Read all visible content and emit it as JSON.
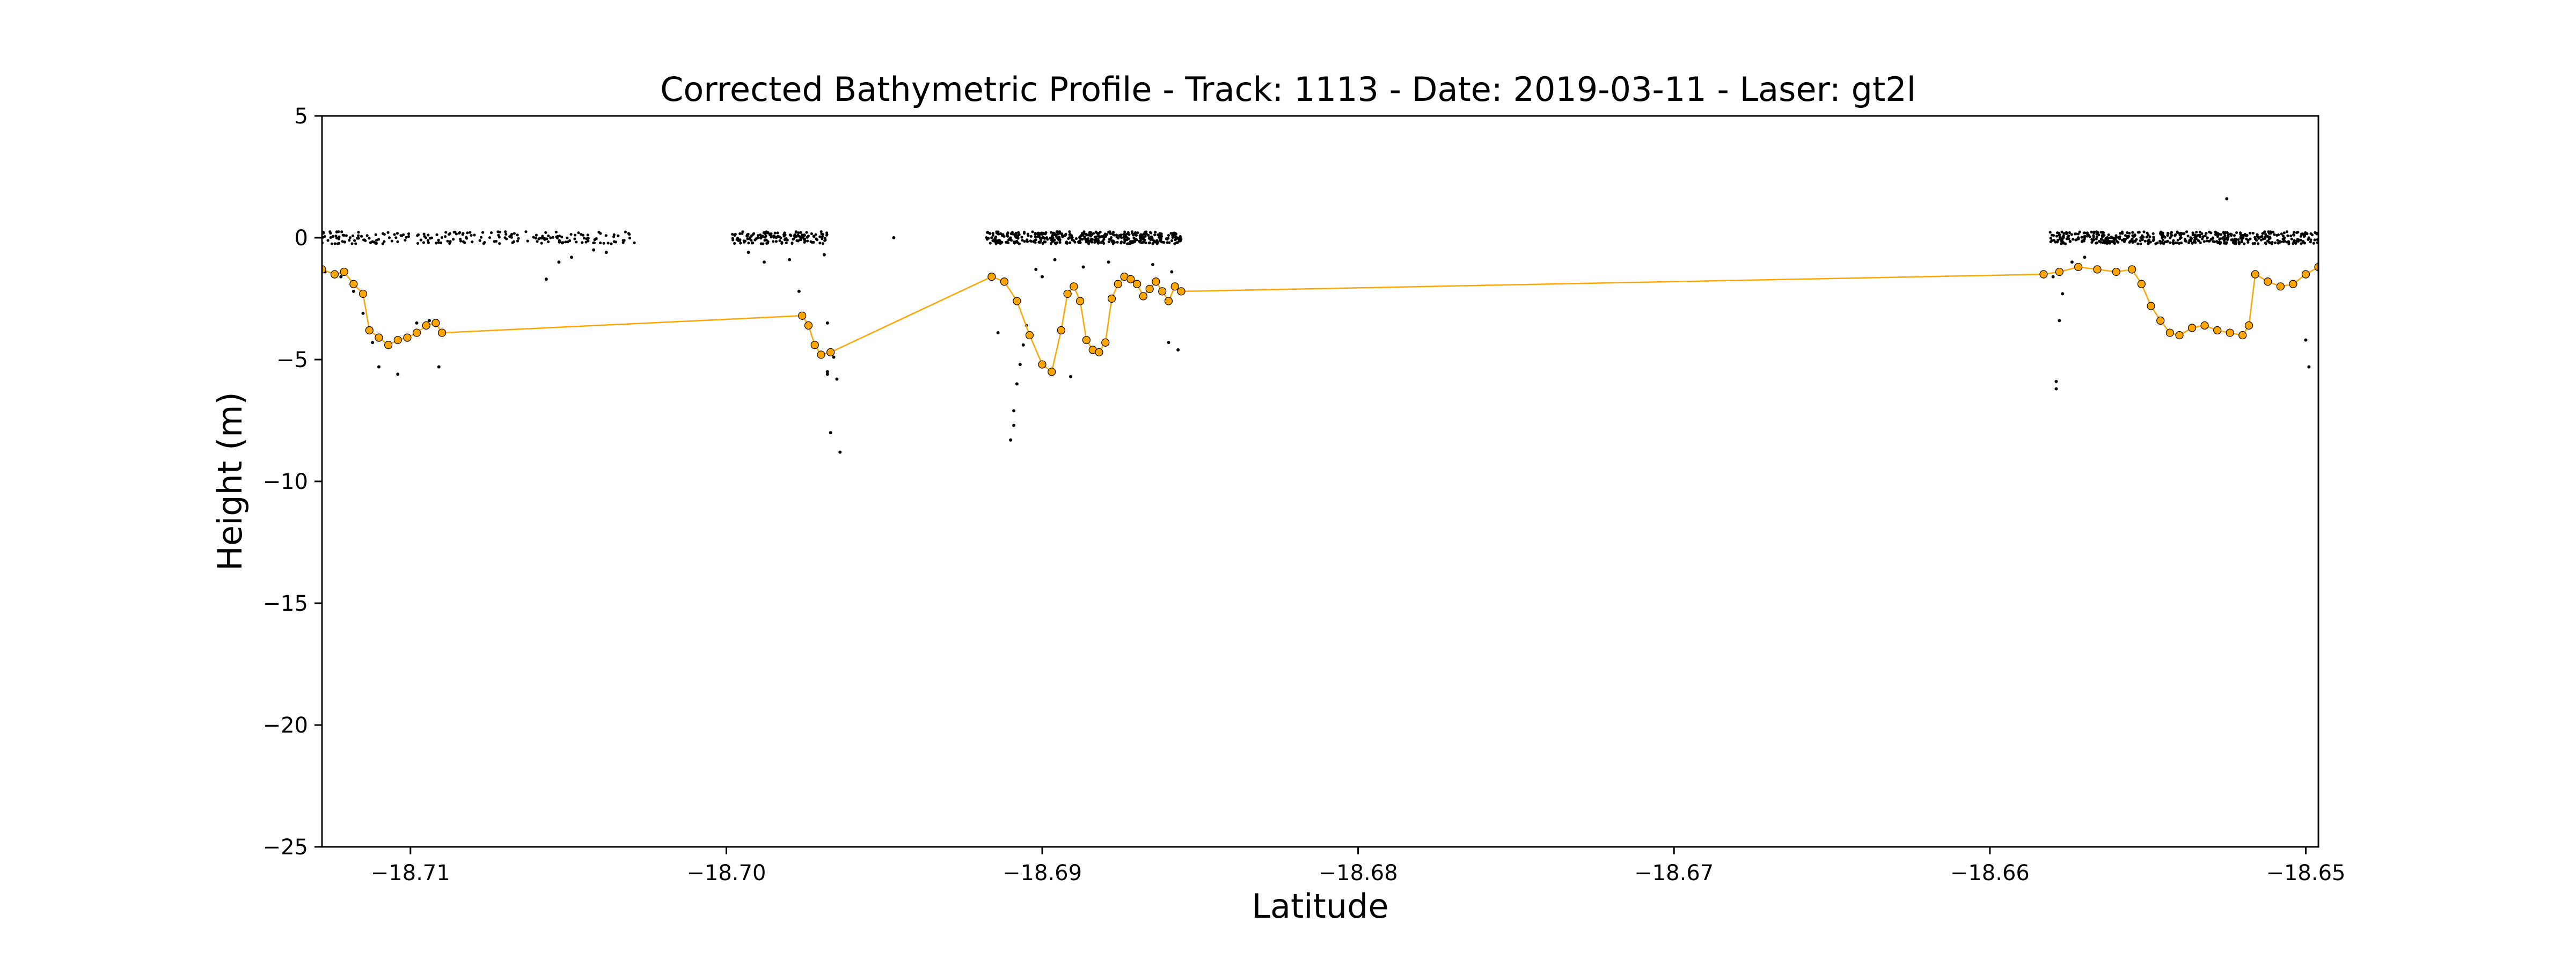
{
  "chart_data": {
    "type": "scatter",
    "title": "Corrected Bathymetric Profile - Track: 1113 - Date: 2019-03-11 - Laser: gt2l",
    "xlabel": "Latitude",
    "ylabel": "Height (m)",
    "xlim": [
      -18.7128,
      -18.6496
    ],
    "ylim": [
      -25,
      5
    ],
    "x_ticks": [
      -18.71,
      -18.7,
      -18.69,
      -18.68,
      -18.67,
      -18.66,
      -18.65
    ],
    "x_tick_labels": [
      "−18.71",
      "−18.70",
      "−18.69",
      "−18.68",
      "−18.67",
      "−18.66",
      "−18.65"
    ],
    "y_ticks": [
      5,
      0,
      -5,
      -10,
      -15,
      -20,
      -25
    ],
    "y_tick_labels": [
      "5",
      "0",
      "−5",
      "−10",
      "−15",
      "−20",
      "−25"
    ],
    "grid": false,
    "colors": {
      "points": "#000000",
      "bathymetry": "#FFA500"
    },
    "series": [
      {
        "style": "points",
        "surface_segments": [
          {
            "x_start": -18.7128,
            "x_end": -18.7029,
            "y": 0.0,
            "density": 220
          },
          {
            "x_start": -18.6999,
            "x_end": -18.6968,
            "y": 0.0,
            "density": 150
          },
          {
            "x_start": -18.6918,
            "x_end": -18.6856,
            "y": 0.0,
            "density": 420
          },
          {
            "x_start": -18.6581,
            "x_end": -18.6496,
            "y": 0.0,
            "density": 480
          }
        ],
        "scattered_points": [
          {
            "x": -18.7127,
            "y": -1.4
          },
          {
            "x": -18.7122,
            "y": -1.6
          },
          {
            "x": -18.7118,
            "y": -2.2
          },
          {
            "x": -18.7115,
            "y": -3.1
          },
          {
            "x": -18.7112,
            "y": -4.3
          },
          {
            "x": -18.711,
            "y": -5.3
          },
          {
            "x": -18.7104,
            "y": -5.6
          },
          {
            "x": -18.7098,
            "y": -3.5
          },
          {
            "x": -18.7094,
            "y": -3.4
          },
          {
            "x": -18.7091,
            "y": -5.3
          },
          {
            "x": -18.7057,
            "y": -1.7
          },
          {
            "x": -18.7053,
            "y": -1.0
          },
          {
            "x": -18.7049,
            "y": -0.8
          },
          {
            "x": -18.7042,
            "y": -0.5
          },
          {
            "x": -18.7038,
            "y": -0.6
          },
          {
            "x": -18.6993,
            "y": -0.6
          },
          {
            "x": -18.6988,
            "y": -1.0
          },
          {
            "x": -18.698,
            "y": -0.9
          },
          {
            "x": -18.6977,
            "y": -2.2
          },
          {
            "x": -18.6969,
            "y": -0.7
          },
          {
            "x": -18.6968,
            "y": -3.5
          },
          {
            "x": -18.6968,
            "y": -5.5
          },
          {
            "x": -18.6968,
            "y": -5.6
          },
          {
            "x": -18.6967,
            "y": -8.0
          },
          {
            "x": -18.6966,
            "y": -4.9
          },
          {
            "x": -18.6965,
            "y": -5.8
          },
          {
            "x": -18.6964,
            "y": -8.8
          },
          {
            "x": -18.6947,
            "y": 0.0
          },
          {
            "x": -18.6914,
            "y": -3.9
          },
          {
            "x": -18.691,
            "y": -8.3
          },
          {
            "x": -18.6909,
            "y": -7.7
          },
          {
            "x": -18.6909,
            "y": -7.1
          },
          {
            "x": -18.6908,
            "y": -6.0
          },
          {
            "x": -18.6907,
            "y": -5.2
          },
          {
            "x": -18.6906,
            "y": -4.4
          },
          {
            "x": -18.6905,
            "y": -3.6
          },
          {
            "x": -18.6902,
            "y": -1.3
          },
          {
            "x": -18.69,
            "y": -1.6
          },
          {
            "x": -18.6896,
            "y": -0.9
          },
          {
            "x": -18.6891,
            "y": -5.7
          },
          {
            "x": -18.6887,
            "y": -1.2
          },
          {
            "x": -18.6879,
            "y": -1.0
          },
          {
            "x": -18.6865,
            "y": -1.1
          },
          {
            "x": -18.686,
            "y": -4.3
          },
          {
            "x": -18.6859,
            "y": -1.4
          },
          {
            "x": -18.6857,
            "y": -4.6
          },
          {
            "x": -18.658,
            "y": -1.6
          },
          {
            "x": -18.6579,
            "y": -5.9
          },
          {
            "x": -18.6579,
            "y": -6.2
          },
          {
            "x": -18.6578,
            "y": -3.4
          },
          {
            "x": -18.6577,
            "y": -2.3
          },
          {
            "x": -18.6574,
            "y": -1.0
          },
          {
            "x": -18.657,
            "y": -0.8
          },
          {
            "x": -18.6525,
            "y": 1.6
          },
          {
            "x": -18.65,
            "y": -4.2
          },
          {
            "x": -18.6499,
            "y": -5.3
          }
        ]
      },
      {
        "style": "line-with-markers",
        "x": [
          -18.7128,
          -18.7124,
          -18.7121,
          -18.7118,
          -18.7115,
          -18.7113,
          -18.711,
          -18.7107,
          -18.7104,
          -18.7101,
          -18.7098,
          -18.7095,
          -18.7092,
          -18.709,
          -18.6976,
          -18.6974,
          -18.6972,
          -18.697,
          -18.6967,
          -18.6916,
          -18.6912,
          -18.6908,
          -18.6904,
          -18.69,
          -18.6897,
          -18.6894,
          -18.6892,
          -18.689,
          -18.6888,
          -18.6886,
          -18.6884,
          -18.6882,
          -18.688,
          -18.6878,
          -18.6876,
          -18.6874,
          -18.6872,
          -18.687,
          -18.6868,
          -18.6866,
          -18.6864,
          -18.6862,
          -18.686,
          -18.6858,
          -18.6856,
          -18.6583,
          -18.6578,
          -18.6572,
          -18.6566,
          -18.656,
          -18.6555,
          -18.6552,
          -18.6549,
          -18.6546,
          -18.6543,
          -18.654,
          -18.6536,
          -18.6532,
          -18.6528,
          -18.6524,
          -18.652,
          -18.6518,
          -18.6516,
          -18.6512,
          -18.6508,
          -18.6504,
          -18.65,
          -18.6496
        ],
        "y": [
          -1.3,
          -1.5,
          -1.4,
          -1.9,
          -2.3,
          -3.8,
          -4.1,
          -4.4,
          -4.2,
          -4.1,
          -3.9,
          -3.6,
          -3.5,
          -3.9,
          -3.2,
          -3.6,
          -4.4,
          -4.8,
          -4.7,
          -1.6,
          -1.8,
          -2.6,
          -4.0,
          -5.2,
          -5.5,
          -3.8,
          -2.3,
          -2.0,
          -2.6,
          -4.2,
          -4.6,
          -4.7,
          -4.3,
          -2.5,
          -1.9,
          -1.6,
          -1.7,
          -1.9,
          -2.4,
          -2.1,
          -1.8,
          -2.2,
          -2.6,
          -2.0,
          -2.2,
          -1.5,
          -1.4,
          -1.2,
          -1.3,
          -1.4,
          -1.3,
          -1.9,
          -2.8,
          -3.4,
          -3.9,
          -4.0,
          -3.7,
          -3.6,
          -3.8,
          -3.9,
          -4.0,
          -3.6,
          -1.5,
          -1.8,
          -2.0,
          -1.9,
          -1.5,
          -1.2
        ]
      }
    ]
  }
}
